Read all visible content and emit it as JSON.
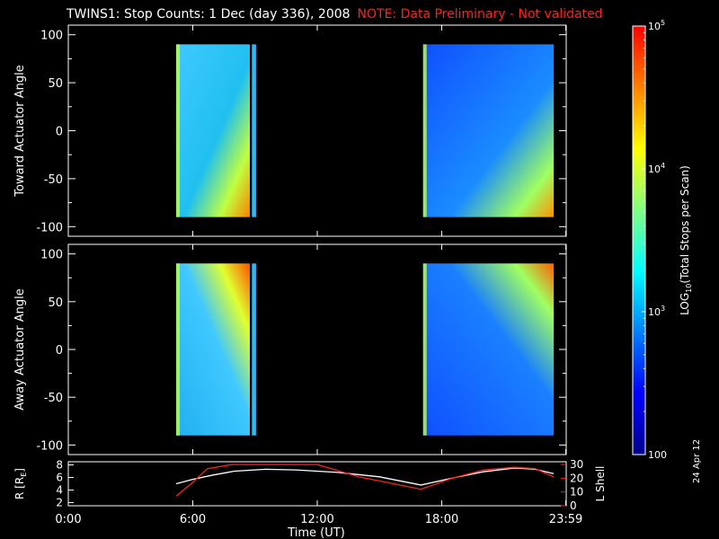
{
  "header": {
    "title": "TWINS1: Stop Counts:  1 Dec (day 336), 2008",
    "note": "NOTE: Data Preliminary - Not validated",
    "note_color": "#ff2020",
    "date_stamp": "24 Apr 12"
  },
  "chart_data": [
    {
      "type": "heatmap",
      "panel": "top",
      "ylabel": "Toward Actuator Angle",
      "ylim": [
        -110,
        110
      ],
      "yticks": [
        "100",
        "50",
        "0",
        "-50",
        "-100"
      ],
      "xlim": [
        0,
        24
      ],
      "data_blocks": [
        {
          "x_start": 5.2,
          "x_end": 8.75,
          "y_start": -90,
          "y_end": 90,
          "level": "mostly 10^3, rising toward 10^5 near -90"
        },
        {
          "x_start": 8.85,
          "x_end": 9.05,
          "y_start": -90,
          "y_end": 90,
          "level": "~10^3"
        },
        {
          "x_start": 17.1,
          "x_end": 23.4,
          "y_start": -90,
          "y_end": 90,
          "level": "mostly 3x10^2, rising toward 10^5 near -90"
        }
      ]
    },
    {
      "type": "heatmap",
      "panel": "middle",
      "ylabel": "Away Actuator Angle",
      "ylim": [
        -110,
        110
      ],
      "yticks": [
        "100",
        "50",
        "0",
        "-50",
        "-100"
      ],
      "xlim": [
        0,
        24
      ],
      "data_blocks": [
        {
          "x_start": 5.2,
          "x_end": 8.75,
          "y_start": -90,
          "y_end": 90,
          "level": "mostly 10^3, rising toward 10^5 near +90"
        },
        {
          "x_start": 8.85,
          "x_end": 9.05,
          "y_start": -90,
          "y_end": 90,
          "level": "~10^3"
        },
        {
          "x_start": 17.1,
          "x_end": 23.4,
          "y_start": -90,
          "y_end": 90,
          "level": "mostly 3x10^2, rising toward 10^5 near +90"
        }
      ]
    },
    {
      "type": "line",
      "panel": "bottom",
      "ylabel": "R [R",
      "ylabel_sub": "E",
      "ylabel_close": "]",
      "ylim": [
        1.5,
        8.5
      ],
      "yticks": [
        "8",
        "6",
        "4",
        "2"
      ],
      "y2label": "L Shell",
      "y2lim": [
        0,
        32
      ],
      "y2ticks": [
        "30",
        "20",
        "10",
        "0"
      ],
      "y2_color": "#ff2020",
      "xlabel": "Time (UT)",
      "xticks": [
        {
          "t": 0,
          "label": "0:00"
        },
        {
          "t": 6,
          "label": "6:00"
        },
        {
          "t": 12,
          "label": "12:00"
        },
        {
          "t": 18,
          "label": "18:00"
        },
        {
          "t": 23.98,
          "label": "23:59"
        }
      ],
      "series": [
        {
          "axis": "left",
          "color": "#ffffff",
          "x": [
            5.2,
            6.0,
            7.0,
            8.0,
            9.5,
            11.0,
            13.0,
            15.0,
            17.0,
            18.5,
            20.0,
            21.5,
            22.5,
            23.4
          ],
          "y": [
            5.0,
            5.7,
            6.4,
            7.0,
            7.3,
            7.2,
            6.8,
            6.1,
            4.8,
            5.9,
            6.9,
            7.5,
            7.3,
            6.6
          ]
        },
        {
          "axis": "right",
          "color": "#ff2020",
          "x": [
            5.2,
            6.0,
            6.7,
            7.9,
            11.0,
            12.0,
            14.0,
            17.0,
            18.5,
            20.0,
            21.5,
            22.5,
            23.4
          ],
          "y": [
            7,
            17,
            27,
            30,
            30,
            30,
            21,
            12,
            20,
            26,
            28,
            27,
            21
          ]
        }
      ]
    }
  ],
  "colorbar": {
    "label_prefix": "LOG",
    "label_sub": "10",
    "label_suffix": "(Total Stops per Scan)",
    "ticks": [
      {
        "base": "10",
        "exp": "5"
      },
      {
        "base": "10",
        "exp": "4"
      },
      {
        "base": "10",
        "exp": "3"
      },
      {
        "base": "100",
        "exp": ""
      }
    ],
    "range": [
      100,
      100000
    ],
    "colors": [
      "#00008f",
      "#0000ff",
      "#0080ff",
      "#00ffff",
      "#80ff80",
      "#ffff00",
      "#ff8000",
      "#ff0000"
    ]
  }
}
